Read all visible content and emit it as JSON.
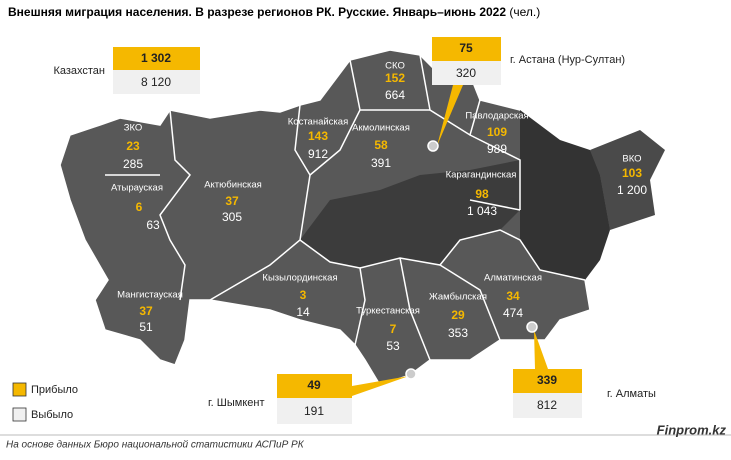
{
  "title": "Внешняя миграция населения. В разрезе регионов РК. Русские. Январь–июнь 2022",
  "title_unit": "(чел.)",
  "total": {
    "label": "Казахстан",
    "arrived": "1 302",
    "departed": "8 120"
  },
  "regions": [
    {
      "name": "ЗКО",
      "arrived": "23",
      "departed": "285"
    },
    {
      "name": "Атырауская",
      "arrived": "6",
      "departed": "63"
    },
    {
      "name": "Актюбинская",
      "arrived": "37",
      "departed": "305"
    },
    {
      "name": "Мангистауская",
      "arrived": "37",
      "departed": "51"
    },
    {
      "name": "Кызылординская",
      "arrived": "3",
      "departed": "14"
    },
    {
      "name": "Костанайская",
      "arrived": "143",
      "departed": "912"
    },
    {
      "name": "СКО",
      "arrived": "152",
      "departed": "664"
    },
    {
      "name": "Акмолинская",
      "arrived": "58",
      "departed": "391"
    },
    {
      "name": "Павлодарская",
      "arrived": "109",
      "departed": "989"
    },
    {
      "name": "ВКО",
      "arrived": "103",
      "departed": "1 200"
    },
    {
      "name": "Карагандинская",
      "arrived": "98",
      "departed": "1 043"
    },
    {
      "name": "Алматинская",
      "arrived": "34",
      "departed": "474"
    },
    {
      "name": "Жамбылская",
      "arrived": "29",
      "departed": "353"
    },
    {
      "name": "Туркестанская",
      "arrived": "7",
      "departed": "53"
    }
  ],
  "cities": [
    {
      "name": "г. Астана (Нур-Султан)",
      "arrived": "75",
      "departed": "320"
    },
    {
      "name": "г. Алматы",
      "arrived": "339",
      "departed": "812"
    },
    {
      "name": "г. Шымкент",
      "arrived": "49",
      "departed": "191"
    }
  ],
  "legend": {
    "arrived": "Прибыло",
    "departed": "Выбыло"
  },
  "source": "На основе данных Бюро национальной статистики АСПиР РК",
  "brand": "Finprom.kz"
}
